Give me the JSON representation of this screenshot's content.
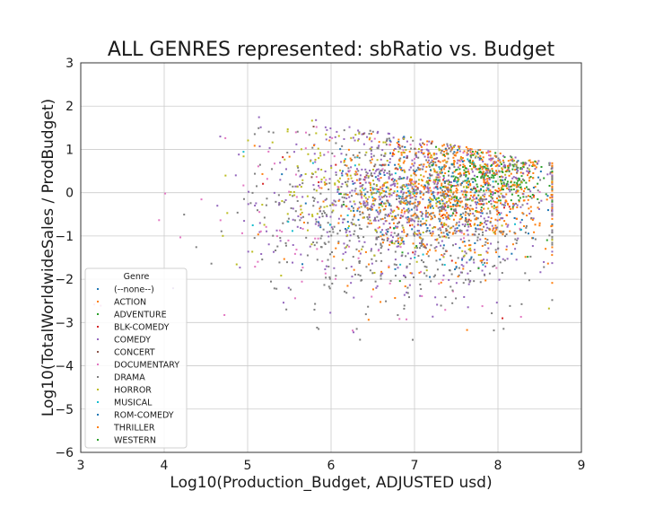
{
  "chart_data": {
    "type": "scatter",
    "title": "ALL GENRES represented: sbRatio vs. Budget",
    "xlabel": "Log10(Production_Budget, ADJUSTED usd)",
    "ylabel": "Log10(TotalWorldwideSales / ProdBudget)",
    "xlim": [
      3,
      9
    ],
    "ylim": [
      -6,
      3
    ],
    "xticks": [
      "3",
      "4",
      "5",
      "6",
      "7",
      "8",
      "9"
    ],
    "yticks": [
      "3",
      "2",
      "1",
      "0",
      "−1",
      "−2",
      "−3",
      "−4",
      "−5",
      "−6"
    ],
    "grid": true,
    "legend": {
      "title": "Genre",
      "placement": "lower-left"
    },
    "series": [
      {
        "name": "(--none--)",
        "color": "#1f77b4",
        "count": 40,
        "center": [
          7.3,
          0.0
        ],
        "spread": [
          0.9,
          1.0
        ]
      },
      {
        "name": "ACTION",
        "color": "#ff7f0e",
        "count": 420,
        "center": [
          7.6,
          0.1
        ],
        "spread": [
          0.6,
          0.7
        ]
      },
      {
        "name": "ADVENTURE",
        "color": "#2ca02c",
        "count": 200,
        "center": [
          7.9,
          0.3
        ],
        "spread": [
          0.35,
          0.35
        ]
      },
      {
        "name": "BLK-COMEDY",
        "color": "#d62728",
        "count": 60,
        "center": [
          7.1,
          -0.2
        ],
        "spread": [
          0.7,
          0.9
        ]
      },
      {
        "name": "COMEDY",
        "color": "#9467bd",
        "count": 650,
        "center": [
          7.0,
          -0.1
        ],
        "spread": [
          0.9,
          1.0
        ]
      },
      {
        "name": "CONCERT",
        "color": "#8c564b",
        "count": 30,
        "center": [
          6.8,
          0.1
        ],
        "spread": [
          0.8,
          0.9
        ]
      },
      {
        "name": "DOCUMENTARY",
        "color": "#e377c2",
        "count": 120,
        "center": [
          6.2,
          -0.4
        ],
        "spread": [
          1.0,
          1.2
        ]
      },
      {
        "name": "DRAMA",
        "color": "#7f7f7f",
        "count": 700,
        "center": [
          6.9,
          -0.5
        ],
        "spread": [
          0.9,
          1.0
        ]
      },
      {
        "name": "HORROR",
        "color": "#bcbd22",
        "count": 250,
        "center": [
          6.7,
          0.1
        ],
        "spread": [
          0.8,
          0.9
        ]
      },
      {
        "name": "MUSICAL",
        "color": "#17becf",
        "count": 50,
        "center": [
          7.1,
          -0.3
        ],
        "spread": [
          0.8,
          1.0
        ]
      },
      {
        "name": "ROM-COMEDY",
        "color": "#1f77b4",
        "count": 120,
        "center": [
          7.2,
          -0.1
        ],
        "spread": [
          0.6,
          0.8
        ]
      },
      {
        "name": "THRILLER",
        "color": "#ff7f0e",
        "count": 280,
        "center": [
          7.3,
          -0.2
        ],
        "spread": [
          0.7,
          0.9
        ]
      },
      {
        "name": "WESTERN",
        "color": "#2ca02c",
        "count": 30,
        "center": [
          7.3,
          -0.2
        ],
        "spread": [
          0.7,
          0.9
        ]
      }
    ]
  }
}
